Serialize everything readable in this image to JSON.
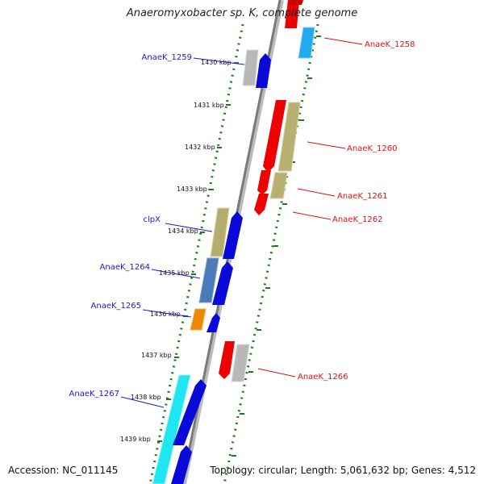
{
  "title": "Anaeromyxobacter sp. K, complete genome",
  "accession": "Accession: NC_011145",
  "summary": "Topology: circular; Length: 5,061,632 bp; Genes: 4,512",
  "colors": {
    "forward_label": "#1a1acc",
    "reverse_label": "#dd1111",
    "backbone": "#808080",
    "tick": "#1c7a1c"
  },
  "kbp_ticks": [
    "1430 kbp",
    "1431 kbp",
    "1432 kbp",
    "1433 kbp",
    "1434 kbp",
    "1435 kbp",
    "1436 kbp",
    "1437 kbp",
    "1438 kbp",
    "1439 kbp"
  ],
  "gene_labels": {
    "anaek_1259": "AnaeK_1259",
    "clpx": "clpX",
    "anaek_1264": "AnaeK_1264",
    "anaek_1265": "AnaeK_1265",
    "anaek_1267": "AnaeK_1267",
    "anaek_1258": "AnaeK_1258",
    "anaek_1260": "AnaeK_1260",
    "anaek_1261": "AnaeK_1261",
    "anaek_1262": "AnaeK_1262",
    "anaek_1266": "AnaeK_1266"
  }
}
